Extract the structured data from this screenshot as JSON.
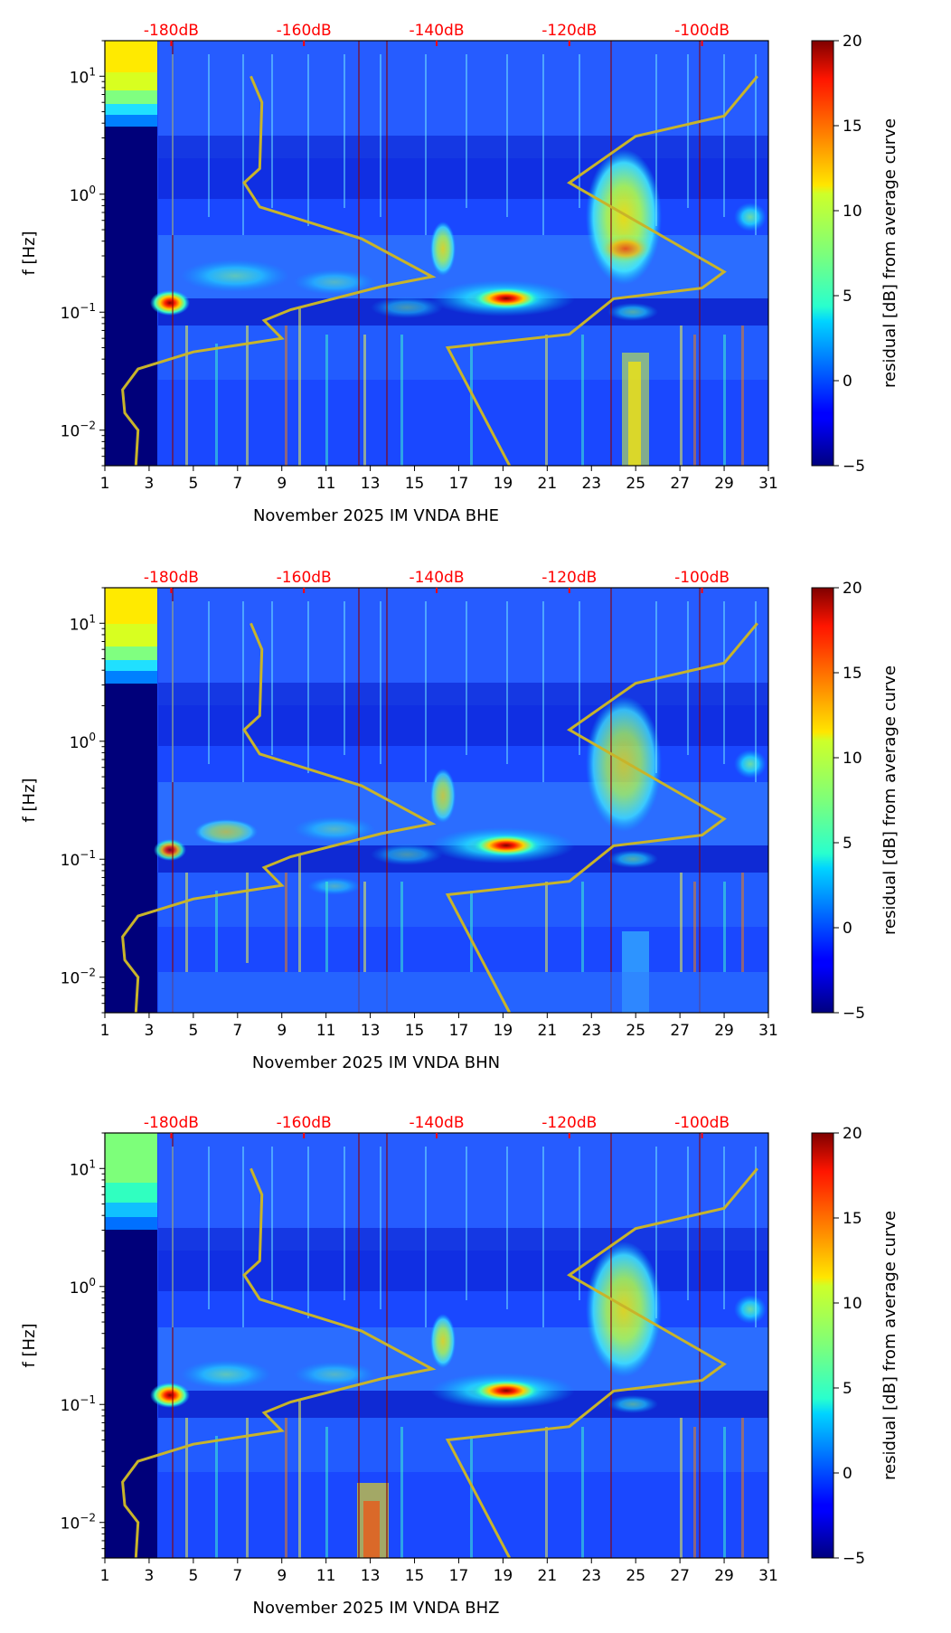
{
  "chart_data": [
    {
      "type": "heatmap",
      "title": "",
      "xlabel": "November 2025 IM VNDA  BHE",
      "ylabel": "f [Hz]",
      "x_ticks": [
        "1",
        "3",
        "5",
        "7",
        "9",
        "11",
        "13",
        "15",
        "17",
        "19",
        "21",
        "23",
        "25",
        "27",
        "29",
        "31"
      ],
      "xlim": [
        1,
        31
      ],
      "y_ticks": [
        {
          "base": "10",
          "exp": "1",
          "value": 10
        },
        {
          "base": "10",
          "exp": "0",
          "value": 1
        },
        {
          "base": "10",
          "exp": "−1",
          "value": 0.1
        },
        {
          "base": "10",
          "exp": "−2",
          "value": 0.01
        }
      ],
      "ylim": [
        0.005,
        20
      ],
      "y_scale": "log",
      "top_labels": [
        "-180dB",
        "-160dB",
        "-140dB",
        "-120dB",
        "-100dB"
      ],
      "colorbar": {
        "label": "residual [dB] from average curve",
        "ticks": [
          "20",
          "15",
          "10",
          "5",
          "0",
          "−5"
        ],
        "range": [
          -5,
          20
        ],
        "colormap": "jet"
      },
      "curves": [
        {
          "name": "left reference curve",
          "day": [
            2.4,
            2.5,
            1.9,
            1.8,
            2.5,
            5.0,
            9.0,
            8.2,
            9.4,
            13.5,
            15.8,
            12.6,
            8.0,
            7.3,
            8.0,
            8.1,
            7.6
          ],
          "freq_hz": [
            0.005,
            0.01,
            0.014,
            0.022,
            0.033,
            0.046,
            0.06,
            0.085,
            0.105,
            0.165,
            0.2,
            0.42,
            0.78,
            1.25,
            1.65,
            6.0,
            10.0
          ]
        },
        {
          "name": "right reference curve",
          "day": [
            19.3,
            16.5,
            22.0,
            24.0,
            28.0,
            29.0,
            22.0,
            25.0,
            29.0,
            30.5
          ],
          "freq_hz": [
            0.005,
            0.05,
            0.065,
            0.13,
            0.16,
            0.22,
            1.25,
            3.1,
            4.6,
            10.0
          ]
        }
      ],
      "hotspots": [
        {
          "day": 19.2,
          "freq_hz": 0.13,
          "level_db": 20
        },
        {
          "day": 3.9,
          "freq_hz": 0.12,
          "level_db": 16
        },
        {
          "day": 25.4,
          "freq_hz": 0.35,
          "level_db": 13
        },
        {
          "day": 16.0,
          "freq_hz": 0.33,
          "level_db": 8
        },
        {
          "day": 25.2,
          "freq_hz": 0.015,
          "level_db": 9
        }
      ]
    },
    {
      "type": "heatmap",
      "title": "",
      "xlabel": "November 2025 IM VNDA  BHN",
      "ylabel": "f [Hz]",
      "x_ticks": [
        "1",
        "3",
        "5",
        "7",
        "9",
        "11",
        "13",
        "15",
        "17",
        "19",
        "21",
        "23",
        "25",
        "27",
        "29",
        "31"
      ],
      "xlim": [
        1,
        31
      ],
      "y_ticks": [
        {
          "base": "10",
          "exp": "1",
          "value": 10
        },
        {
          "base": "10",
          "exp": "0",
          "value": 1
        },
        {
          "base": "10",
          "exp": "−1",
          "value": 0.1
        },
        {
          "base": "10",
          "exp": "−2",
          "value": 0.01
        }
      ],
      "ylim": [
        0.005,
        20
      ],
      "y_scale": "log",
      "top_labels": [
        "-180dB",
        "-160dB",
        "-140dB",
        "-120dB",
        "-100dB"
      ],
      "colorbar": {
        "label": "residual [dB] from average curve",
        "ticks": [
          "20",
          "15",
          "10",
          "5",
          "0",
          "−5"
        ],
        "range": [
          -5,
          20
        ],
        "colormap": "jet"
      },
      "curves": [
        {
          "name": "left reference curve",
          "day": [
            2.4,
            2.5,
            1.9,
            1.8,
            2.5,
            5.0,
            9.0,
            8.2,
            9.4,
            13.5,
            15.8,
            12.6,
            8.0,
            7.3,
            8.0,
            8.1,
            7.6
          ],
          "freq_hz": [
            0.005,
            0.01,
            0.014,
            0.022,
            0.033,
            0.046,
            0.06,
            0.085,
            0.105,
            0.165,
            0.2,
            0.42,
            0.78,
            1.25,
            1.65,
            6.0,
            10.0
          ]
        },
        {
          "name": "right reference curve",
          "day": [
            19.3,
            16.5,
            22.0,
            24.0,
            28.0,
            29.0,
            22.0,
            25.0,
            29.0,
            30.5
          ],
          "freq_hz": [
            0.005,
            0.05,
            0.065,
            0.13,
            0.16,
            0.22,
            1.25,
            3.1,
            4.6,
            10.0
          ]
        }
      ],
      "hotspots": [
        {
          "day": 19.2,
          "freq_hz": 0.13,
          "level_db": 20
        },
        {
          "day": 3.9,
          "freq_hz": 0.12,
          "level_db": 14
        },
        {
          "day": 25.4,
          "freq_hz": 0.35,
          "level_db": 9
        },
        {
          "day": 16.0,
          "freq_hz": 0.33,
          "level_db": 6
        },
        {
          "day": 6.4,
          "freq_hz": 0.17,
          "level_db": 6
        }
      ]
    },
    {
      "type": "heatmap",
      "title": "",
      "xlabel": "November 2025 IM VNDA  BHZ",
      "ylabel": "f [Hz]",
      "x_ticks": [
        "1",
        "3",
        "5",
        "7",
        "9",
        "11",
        "13",
        "15",
        "17",
        "19",
        "21",
        "23",
        "25",
        "27",
        "29",
        "31"
      ],
      "xlim": [
        1,
        31
      ],
      "y_ticks": [
        {
          "base": "10",
          "exp": "1",
          "value": 10
        },
        {
          "base": "10",
          "exp": "0",
          "value": 1
        },
        {
          "base": "10",
          "exp": "−1",
          "value": 0.1
        },
        {
          "base": "10",
          "exp": "−2",
          "value": 0.01
        }
      ],
      "ylim": [
        0.005,
        20
      ],
      "y_scale": "log",
      "top_labels": [
        "-180dB",
        "-160dB",
        "-140dB",
        "-120dB",
        "-100dB"
      ],
      "colorbar": {
        "label": "residual [dB] from average curve",
        "ticks": [
          "20",
          "15",
          "10",
          "5",
          "0",
          "−5"
        ],
        "range": [
          -5,
          20
        ],
        "colormap": "jet"
      },
      "curves": [
        {
          "name": "left reference curve",
          "day": [
            2.4,
            2.5,
            1.9,
            1.8,
            2.5,
            5.0,
            9.0,
            8.2,
            9.4,
            13.5,
            15.8,
            12.6,
            8.0,
            7.3,
            8.0,
            8.1,
            7.6
          ],
          "freq_hz": [
            0.005,
            0.01,
            0.014,
            0.022,
            0.033,
            0.046,
            0.06,
            0.085,
            0.105,
            0.165,
            0.2,
            0.42,
            0.78,
            1.25,
            1.65,
            6.0,
            10.0
          ]
        },
        {
          "name": "right reference curve",
          "day": [
            19.3,
            16.5,
            22.0,
            24.0,
            28.0,
            29.0,
            22.0,
            25.0,
            29.0,
            30.5
          ],
          "freq_hz": [
            0.005,
            0.05,
            0.065,
            0.13,
            0.16,
            0.22,
            1.25,
            3.1,
            4.6,
            10.0
          ]
        }
      ],
      "hotspots": [
        {
          "day": 19.2,
          "freq_hz": 0.13,
          "level_db": 20
        },
        {
          "day": 4.0,
          "freq_hz": 0.12,
          "level_db": 15
        },
        {
          "day": 25.2,
          "freq_hz": 0.35,
          "level_db": 11
        },
        {
          "day": 16.0,
          "freq_hz": 0.35,
          "level_db": 8
        },
        {
          "day": 12.8,
          "freq_hz": 0.012,
          "level_db": 17
        }
      ]
    }
  ],
  "colors": {
    "curve": "#c8b42a",
    "top_label": "#ff0000",
    "background_field": "#1f4dff",
    "dark_band": "#00007a"
  }
}
